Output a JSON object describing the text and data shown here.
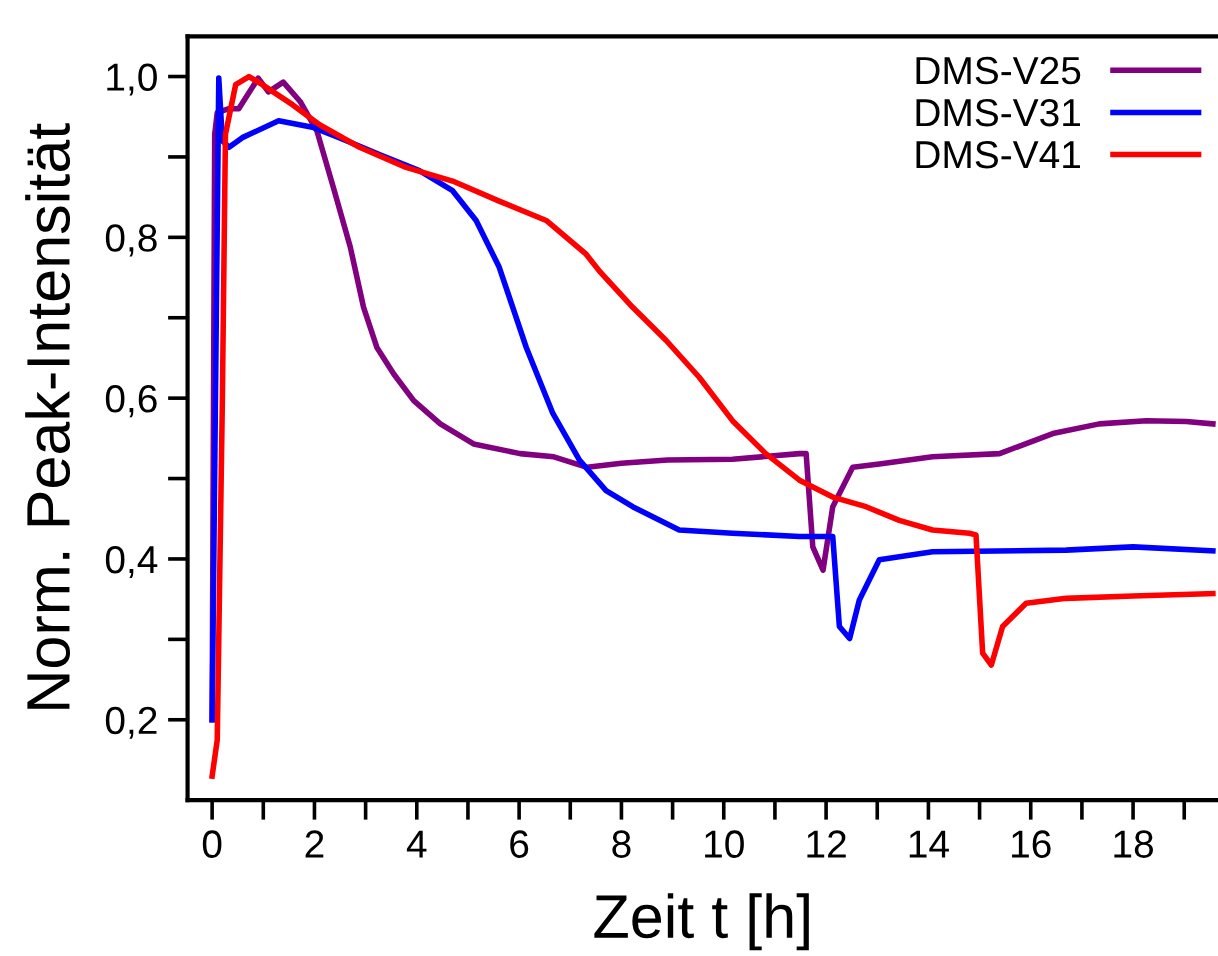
{
  "chart_data": {
    "type": "line",
    "xlabel": "Zeit t [h]",
    "ylabel": "Norm. Peak-Intensität",
    "xlim": [
      -0.48,
      19.66
    ],
    "ylim": [
      0.1,
      1.05
    ],
    "xticks": [
      0,
      {
        "value": 1,
        "label": null
      },
      2,
      {
        "value": 3,
        "label": null
      },
      4,
      {
        "value": 5,
        "label": null
      },
      6,
      {
        "value": 7,
        "label": null
      },
      8,
      {
        "value": 9,
        "label": null
      },
      10,
      {
        "value": 11,
        "label": null
      },
      12,
      {
        "value": 13,
        "label": null
      },
      14,
      {
        "value": 15,
        "label": null
      },
      16,
      {
        "value": 17,
        "label": null
      },
      18,
      {
        "value": 19,
        "label": null
      }
    ],
    "yticks": [
      {
        "value": 0.2,
        "label": "0,2"
      },
      {
        "value": 0.3,
        "label": null
      },
      {
        "value": 0.4,
        "label": "0,4"
      },
      {
        "value": 0.5,
        "label": null
      },
      {
        "value": 0.6,
        "label": "0,6"
      },
      {
        "value": 0.7,
        "label": null
      },
      {
        "value": 0.8,
        "label": "0,8"
      },
      {
        "value": 0.9,
        "label": null
      },
      {
        "value": 1.0,
        "label": "1,0"
      }
    ],
    "grid": false,
    "legend": "top right",
    "marker": "none",
    "line_style": "solid",
    "series": [
      {
        "name": "DMS-V25",
        "color": "#800080",
        "x": [
          0,
          0.05,
          0.1,
          0.33,
          0.52,
          0.9,
          1.1,
          1.39,
          1.72,
          2.05,
          2.37,
          2.7,
          2.96,
          3.22,
          3.55,
          3.94,
          4.46,
          5.11,
          6.02,
          6.68,
          7.33,
          8.0,
          8.9,
          10.17,
          11.48,
          11.61,
          11.74,
          11.94,
          12.13,
          12.52,
          13.04,
          14.08,
          15.39,
          16.43,
          17.34,
          18.26,
          19.04,
          19.56
        ],
        "values": [
          0.2,
          0.928,
          0.955,
          0.96,
          0.96,
          0.998,
          0.981,
          0.993,
          0.969,
          0.932,
          0.862,
          0.788,
          0.713,
          0.663,
          0.63,
          0.597,
          0.568,
          0.543,
          0.531,
          0.527,
          0.514,
          0.519,
          0.523,
          0.524,
          0.531,
          0.531,
          0.415,
          0.386,
          0.465,
          0.514,
          0.518,
          0.527,
          0.531,
          0.556,
          0.568,
          0.572,
          0.571,
          0.568
        ]
      },
      {
        "name": "DMS-V31",
        "color": "#0000ff",
        "x": [
          0,
          0.13,
          0.2,
          0.33,
          0.59,
          1.3,
          1.96,
          2.48,
          3.27,
          4.05,
          4.7,
          5.16,
          5.61,
          6.14,
          6.66,
          7.18,
          7.7,
          8.22,
          9.13,
          10.17,
          11.48,
          12.13,
          12.26,
          12.46,
          12.65,
          13.04,
          14.08,
          16.69,
          18.0,
          19.56
        ],
        "values": [
          0.2,
          0.998,
          0.92,
          0.912,
          0.924,
          0.945,
          0.937,
          0.924,
          0.903,
          0.883,
          0.858,
          0.821,
          0.763,
          0.663,
          0.581,
          0.523,
          0.485,
          0.465,
          0.436,
          0.432,
          0.428,
          0.428,
          0.316,
          0.301,
          0.349,
          0.399,
          0.409,
          0.411,
          0.415,
          0.41
        ]
      },
      {
        "name": "DMS-V41",
        "color": "#ff0000",
        "x": [
          0,
          0.1,
          0.2,
          0.26,
          0.46,
          0.72,
          0.98,
          1.57,
          2.1,
          2.88,
          3.79,
          4.7,
          5.61,
          6.53,
          7.31,
          7.57,
          8.22,
          8.87,
          9.52,
          10.17,
          10.82,
          11.48,
          12.13,
          12.78,
          13.43,
          14.08,
          14.8,
          14.93,
          15.06,
          15.23,
          15.45,
          15.91,
          16.69,
          18.0,
          19.56
        ],
        "values": [
          0.13,
          0.175,
          0.597,
          0.928,
          0.99,
          1.0,
          0.99,
          0.965,
          0.94,
          0.912,
          0.887,
          0.87,
          0.845,
          0.821,
          0.779,
          0.758,
          0.713,
          0.672,
          0.626,
          0.572,
          0.531,
          0.498,
          0.477,
          0.465,
          0.448,
          0.436,
          0.432,
          0.43,
          0.283,
          0.268,
          0.316,
          0.345,
          0.351,
          0.354,
          0.357
        ]
      }
    ]
  }
}
